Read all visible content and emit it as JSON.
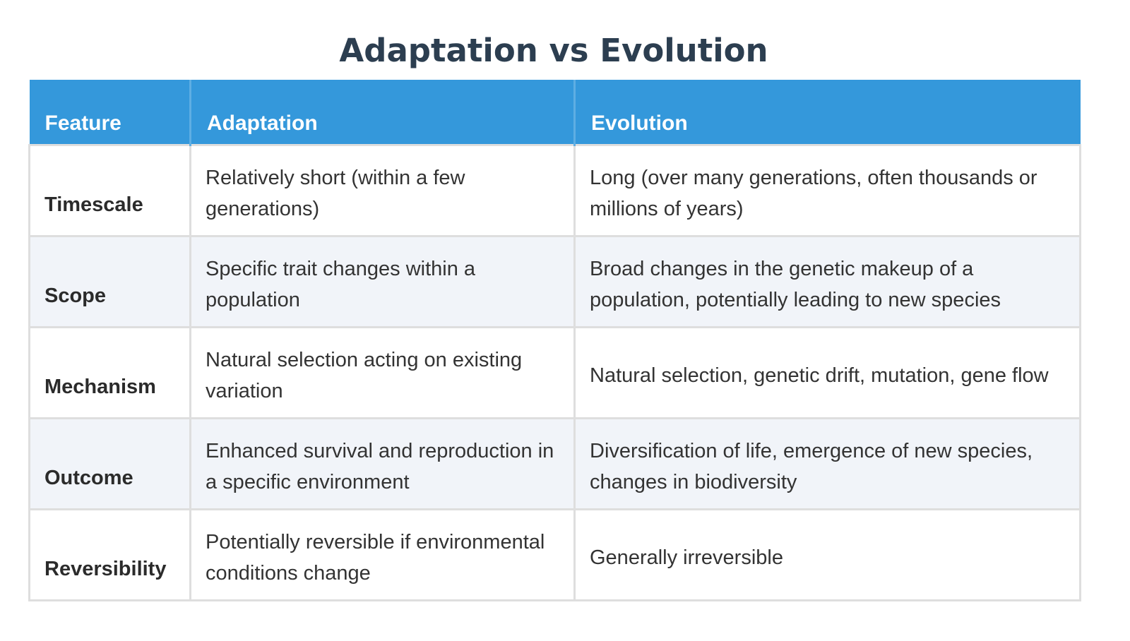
{
  "title": "Adaptation vs Evolution",
  "table": {
    "headers": [
      "Feature",
      "Adaptation",
      "Evolution"
    ],
    "rows": [
      {
        "feature": "Timescale",
        "adaptation": "Relatively short (within a few generations)",
        "evolution": "Long (over many generations, often thousands or millions of years)"
      },
      {
        "feature": "Scope",
        "adaptation": "Specific trait changes within a population",
        "evolution": "Broad changes in the genetic makeup of a population, potentially leading to new species"
      },
      {
        "feature": "Mechanism",
        "adaptation": "Natural selection acting on existing variation",
        "evolution": "Natural selection, genetic drift, mutation, gene flow"
      },
      {
        "feature": "Outcome",
        "adaptation": "Enhanced survival and reproduction in a specific environment",
        "evolution": "Diversification of life, emergence of new species, changes in biodiversity"
      },
      {
        "feature": "Reversibility",
        "adaptation": "Potentially reversible if environmental conditions change",
        "evolution": "Generally irreversible"
      }
    ]
  },
  "colors": {
    "title": "#2c3e50",
    "header_bg": "#3498db",
    "header_text": "#ffffff",
    "alt_row_bg": "#f1f4f9",
    "border": "#dedede"
  }
}
